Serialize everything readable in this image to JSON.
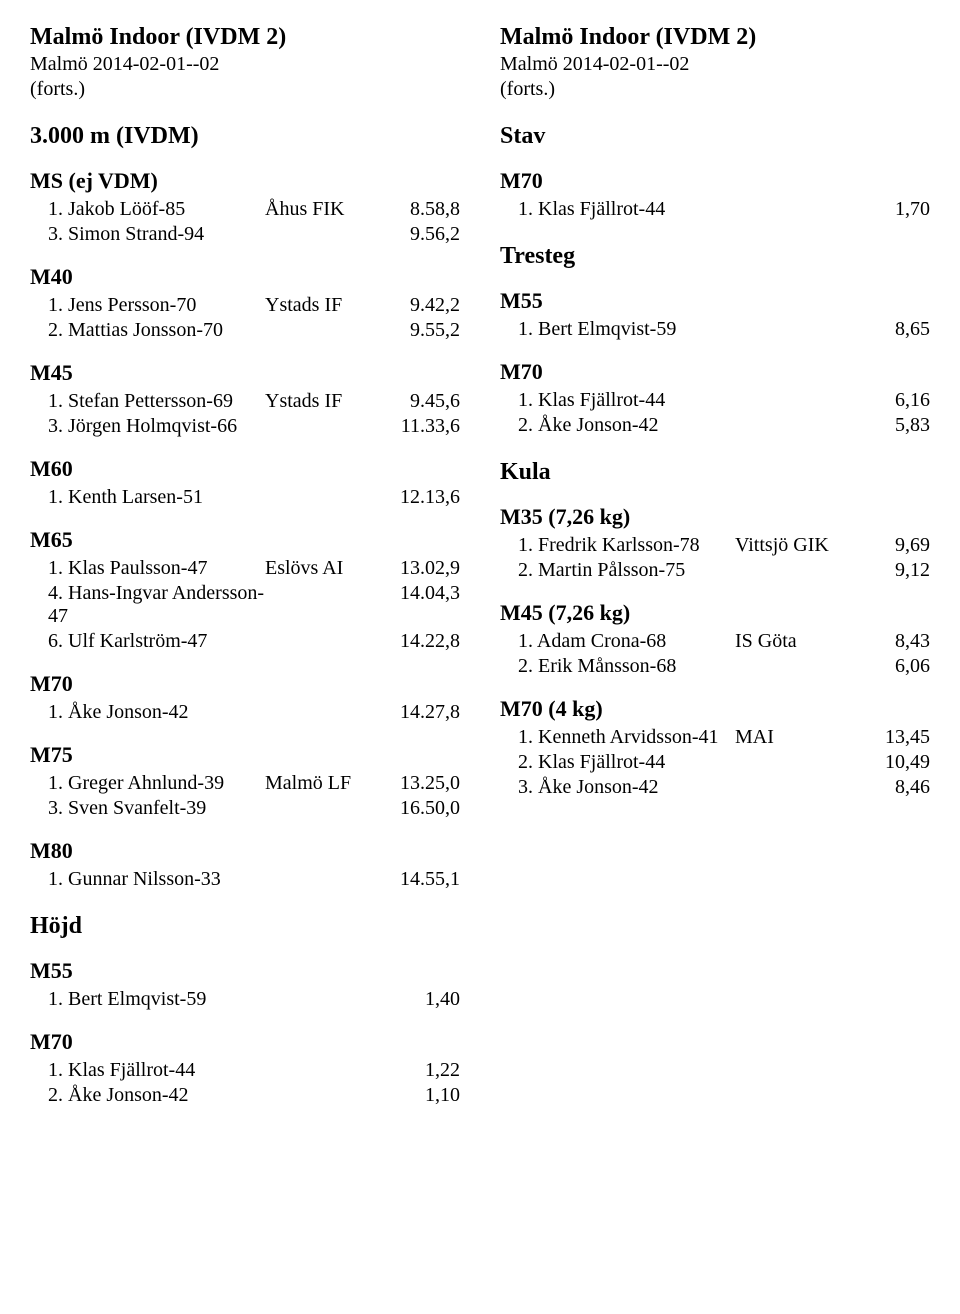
{
  "left": {
    "header": {
      "title": "Malmö Indoor (IVDM 2)",
      "sub1": "Malmö 2014-02-01--02",
      "sub2": "(forts.)"
    },
    "sections": [
      {
        "event": "3.000 m (IVDM)",
        "cats": [
          {
            "name": "MS (ej VDM)",
            "rows": [
              {
                "rn": "1. Jakob Lööf-85",
                "club": "Åhus FIK",
                "res": "8.58,8"
              },
              {
                "rn": "3. Simon Strand-94",
                "club": "",
                "res": "9.56,2"
              }
            ]
          },
          {
            "name": "M40",
            "rows": [
              {
                "rn": "1. Jens Persson-70",
                "club": "Ystads IF",
                "res": "9.42,2"
              },
              {
                "rn": "2. Mattias Jonsson-70",
                "club": "",
                "res": "9.55,2"
              }
            ]
          },
          {
            "name": "M45",
            "rows": [
              {
                "rn": "1. Stefan Pettersson-69",
                "club": "Ystads IF",
                "res": "9.45,6"
              },
              {
                "rn": "3. Jörgen Holmqvist-66",
                "club": "",
                "res": "11.33,6"
              }
            ]
          },
          {
            "name": "M60",
            "rows": [
              {
                "rn": "1. Kenth Larsen-51",
                "club": "",
                "res": "12.13,6"
              }
            ]
          },
          {
            "name": "M65",
            "rows": [
              {
                "rn": "1. Klas Paulsson-47",
                "club": "Eslövs AI",
                "res": "13.02,9"
              },
              {
                "rn": "4. Hans-Ingvar Andersson-47",
                "club": "",
                "res": "14.04,3"
              },
              {
                "rn": "6. Ulf Karlström-47",
                "club": "",
                "res": "14.22,8"
              }
            ]
          },
          {
            "name": "M70",
            "rows": [
              {
                "rn": "1. Åke Jonson-42",
                "club": "",
                "res": "14.27,8"
              }
            ]
          },
          {
            "name": "M75",
            "rows": [
              {
                "rn": "1. Greger Ahnlund-39",
                "club": "Malmö LF",
                "res": "13.25,0"
              },
              {
                "rn": "3. Sven Svanfelt-39",
                "club": "",
                "res": "16.50,0"
              }
            ]
          },
          {
            "name": "M80",
            "rows": [
              {
                "rn": "1. Gunnar Nilsson-33",
                "club": "",
                "res": "14.55,1"
              }
            ]
          }
        ]
      },
      {
        "event": "Höjd",
        "cats": [
          {
            "name": "M55",
            "rows": [
              {
                "rn": "1. Bert Elmqvist-59",
                "club": "",
                "res": "1,40"
              }
            ]
          },
          {
            "name": "M70",
            "rows": [
              {
                "rn": "1. Klas Fjällrot-44",
                "club": "",
                "res": "1,22"
              },
              {
                "rn": "2. Åke Jonson-42",
                "club": "",
                "res": "1,10"
              }
            ]
          }
        ]
      }
    ]
  },
  "right": {
    "header": {
      "title": "Malmö Indoor (IVDM 2)",
      "sub1": "Malmö 2014-02-01--02",
      "sub2": "(forts.)"
    },
    "sections": [
      {
        "event": "Stav",
        "cats": [
          {
            "name": "M70",
            "rows": [
              {
                "rn": "1. Klas Fjällrot-44",
                "club": "",
                "res": "1,70"
              }
            ]
          }
        ]
      },
      {
        "event": "Tresteg",
        "cats": [
          {
            "name": "M55",
            "rows": [
              {
                "rn": "1. Bert Elmqvist-59",
                "club": "",
                "res": "8,65"
              }
            ]
          },
          {
            "name": "M70",
            "rows": [
              {
                "rn": "1. Klas Fjällrot-44",
                "club": "",
                "res": "6,16"
              },
              {
                "rn": "2. Åke Jonson-42",
                "club": "",
                "res": "5,83"
              }
            ]
          }
        ]
      },
      {
        "event": "Kula",
        "cats": [
          {
            "name": "M35 (7,26 kg)",
            "rows": [
              {
                "rn": "1. Fredrik Karlsson-78",
                "club": "Vittsjö GIK",
                "res": "9,69"
              },
              {
                "rn": "2. Martin Pålsson-75",
                "club": "",
                "res": "9,12"
              }
            ]
          },
          {
            "name": "M45 (7,26 kg)",
            "rows": [
              {
                "rn": "1. Adam Crona-68",
                "club": "IS Göta",
                "res": "8,43"
              },
              {
                "rn": "2. Erik Månsson-68",
                "club": "",
                "res": "6,06"
              }
            ]
          },
          {
            "name": "M70 (4 kg)",
            "rows": [
              {
                "rn": "1. Kenneth Arvidsson-41",
                "club": "MAI",
                "res": "13,45"
              },
              {
                "rn": "2. Klas Fjällrot-44",
                "club": "",
                "res": "10,49"
              },
              {
                "rn": "3. Åke Jonson-42",
                "club": "",
                "res": "8,46"
              }
            ]
          }
        ]
      }
    ]
  }
}
